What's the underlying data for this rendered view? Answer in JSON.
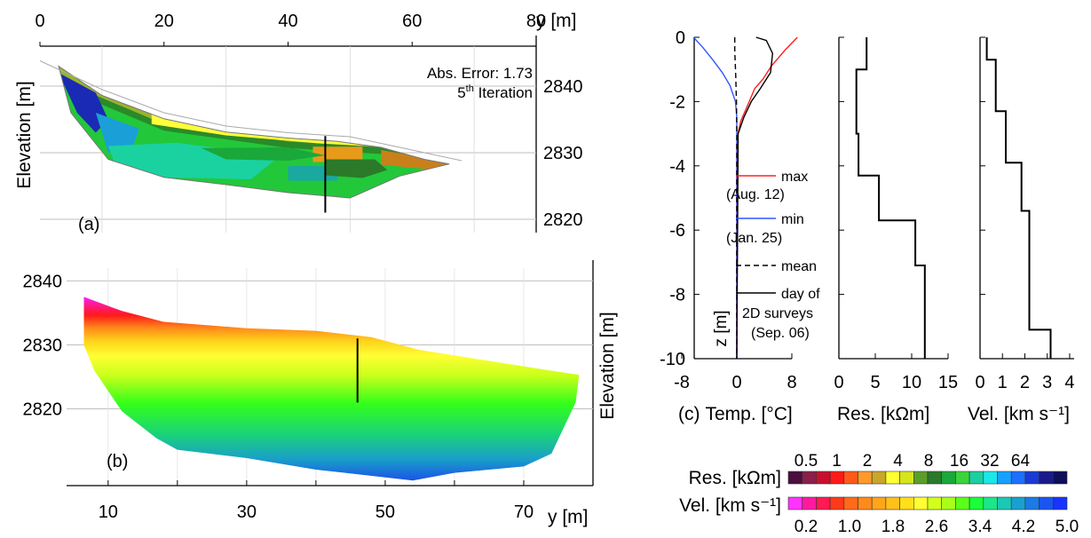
{
  "colors": {
    "temp_max": "#ff2020",
    "temp_min": "#3355ff",
    "profile": "#000000",
    "grid": "#bfbfbf"
  },
  "res_palette": [
    "#4b0e3e",
    "#8a1f4b",
    "#c8102e",
    "#ff1a1a",
    "#ff5a1a",
    "#ff9a2a",
    "#c9a62a",
    "#ffff33",
    "#d6e61a",
    "#5a9e2a",
    "#2a7a2a",
    "#1aa83a",
    "#3ad43a",
    "#1ad0a0",
    "#1ae8e8",
    "#19a0ff",
    "#1f6fff",
    "#1a3ad6",
    "#1a1a8a",
    "#0e0e5a"
  ],
  "vel_palette": [
    "#ff33ff",
    "#ff1aa0",
    "#ff1a55",
    "#ff3a1a",
    "#ff6a1a",
    "#ff8a1a",
    "#ffa51a",
    "#ffc01a",
    "#ffe01a",
    "#ffff33",
    "#d4ff1a",
    "#aaff1a",
    "#5aff1a",
    "#1aff3a",
    "#1ae68a",
    "#1ac8b4",
    "#1aa0d0",
    "#1a7ae6",
    "#1a55f0",
    "#1a33ff"
  ],
  "chart_data": [
    {
      "id": "a",
      "type": "heatmap",
      "panel_label": "(a)",
      "top_axis_ticks": [
        "0",
        "20",
        "40",
        "60",
        "80"
      ],
      "top_axis_label": "y [m]",
      "ylabel": "Elevation [m]",
      "right_ticks": [
        "2840",
        "2830",
        "2820"
      ],
      "annotation_line1": "Abs. Error: 1.73",
      "annotation_line2_base": "5",
      "annotation_line2_sup": "th",
      "annotation_line2_rest": " Iteration",
      "xlim": [
        0,
        80
      ],
      "ylim": [
        2818,
        2846
      ],
      "profile_y": 46
    },
    {
      "id": "b",
      "type": "heatmap",
      "panel_label": "(b)",
      "x_ticks": [
        "10",
        "30",
        "50",
        "70"
      ],
      "xlabel": "y [m]",
      "y_ticks": [
        "2840",
        "2830",
        "2820"
      ],
      "ylabel": "Elevation [m]",
      "xlim": [
        4,
        80
      ],
      "ylim": [
        2808,
        2842
      ],
      "profile_y": 46
    },
    {
      "id": "c_temp",
      "type": "line",
      "panel_label": "(c)",
      "xlabel": "Temp. [°C]",
      "ylabel": "z [m]",
      "x_ticks": [
        "-8",
        "0",
        "8"
      ],
      "y_ticks": [
        "0",
        "-2",
        "-4",
        "-6",
        "-8",
        "-10"
      ],
      "xlim": [
        -8,
        8
      ],
      "ylim": [
        -10,
        0
      ],
      "series": [
        {
          "name": "max (Aug. 12)",
          "points": [
            [
              8.8,
              0
            ],
            [
              7,
              -0.4
            ],
            [
              5,
              -0.9
            ],
            [
              3.8,
              -1.3
            ],
            [
              2.6,
              -1.6
            ],
            [
              1.8,
              -2
            ],
            [
              1.2,
              -2.3
            ],
            [
              0.6,
              -2.6
            ],
            [
              0.15,
              -3
            ],
            [
              0,
              -3.3
            ],
            [
              0,
              -10
            ]
          ]
        },
        {
          "name": "min (Jan. 25)",
          "points": [
            [
              -6.3,
              0
            ],
            [
              -5,
              -0.3
            ],
            [
              -3.5,
              -0.7
            ],
            [
              -2.1,
              -1.1
            ],
            [
              -1,
              -1.5
            ],
            [
              -0.2,
              -2
            ],
            [
              0,
              -2.5
            ],
            [
              0,
              -10
            ]
          ]
        },
        {
          "name": "mean",
          "points": [
            [
              -0.3,
              0
            ],
            [
              -0.3,
              -0.4
            ],
            [
              -0.15,
              -1.2
            ],
            [
              -0.05,
              -2
            ],
            [
              0,
              -3
            ],
            [
              0,
              -10
            ]
          ]
        },
        {
          "name": "day of 2D surveys (Sep. 06)",
          "points": [
            [
              2.8,
              0
            ],
            [
              4.3,
              -0.1
            ],
            [
              5.2,
              -0.5
            ],
            [
              4.9,
              -1.1
            ],
            [
              3.4,
              -1.6
            ],
            [
              2.1,
              -2
            ],
            [
              1,
              -2.5
            ],
            [
              0.2,
              -3
            ],
            [
              0,
              -10
            ]
          ]
        }
      ],
      "legend": [
        {
          "line1": "max",
          "line2": "(Aug. 12)"
        },
        {
          "line1": "min",
          "line2": "(Jan. 25)"
        },
        {
          "line1": "mean",
          "line2": ""
        },
        {
          "line1": "day of",
          "line2": "2D surveys",
          "line3": "(Sep. 06)"
        }
      ]
    },
    {
      "id": "c_res",
      "type": "line",
      "xlabel": "Res. [kΩm]",
      "x_ticks": [
        "0",
        "5",
        "10",
        "15"
      ],
      "xlim": [
        0,
        15
      ],
      "ylim": [
        -10,
        0
      ],
      "series": [
        {
          "points": [
            [
              3.8,
              0
            ],
            [
              3.8,
              -1
            ],
            [
              2.4,
              -1
            ],
            [
              2.4,
              -3
            ],
            [
              2.7,
              -3
            ],
            [
              2.7,
              -4.3
            ],
            [
              5.5,
              -4.3
            ],
            [
              5.5,
              -5.7
            ],
            [
              10.5,
              -5.7
            ],
            [
              10.5,
              -7.1
            ],
            [
              11.8,
              -7.1
            ],
            [
              11.8,
              -10
            ]
          ]
        }
      ]
    },
    {
      "id": "c_vel",
      "type": "line",
      "xlabel": "Vel. [km s⁻¹]",
      "x_ticks": [
        "0",
        "1",
        "2",
        "3",
        "4"
      ],
      "xlim": [
        0,
        4.2
      ],
      "ylim": [
        -10,
        0
      ],
      "series": [
        {
          "points": [
            [
              0.3,
              0
            ],
            [
              0.3,
              -0.7
            ],
            [
              0.7,
              -0.7
            ],
            [
              0.7,
              -2.3
            ],
            [
              1.15,
              -2.3
            ],
            [
              1.15,
              -3.9
            ],
            [
              1.85,
              -3.9
            ],
            [
              1.85,
              -5.4
            ],
            [
              2.2,
              -5.4
            ],
            [
              2.2,
              -9.1
            ],
            [
              3.15,
              -9.1
            ],
            [
              3.15,
              -10
            ]
          ]
        }
      ]
    }
  ],
  "colorbar": {
    "res_label": "Res. [kΩm]",
    "vel_label": "Vel. [km s⁻¹]",
    "res_ticks": [
      "0.5",
      "1",
      "2",
      "4",
      "8",
      "16",
      "32",
      "64"
    ],
    "vel_ticks": [
      "0.2",
      "1.0",
      "1.8",
      "2.6",
      "3.4",
      "4.2",
      "5.0"
    ]
  }
}
